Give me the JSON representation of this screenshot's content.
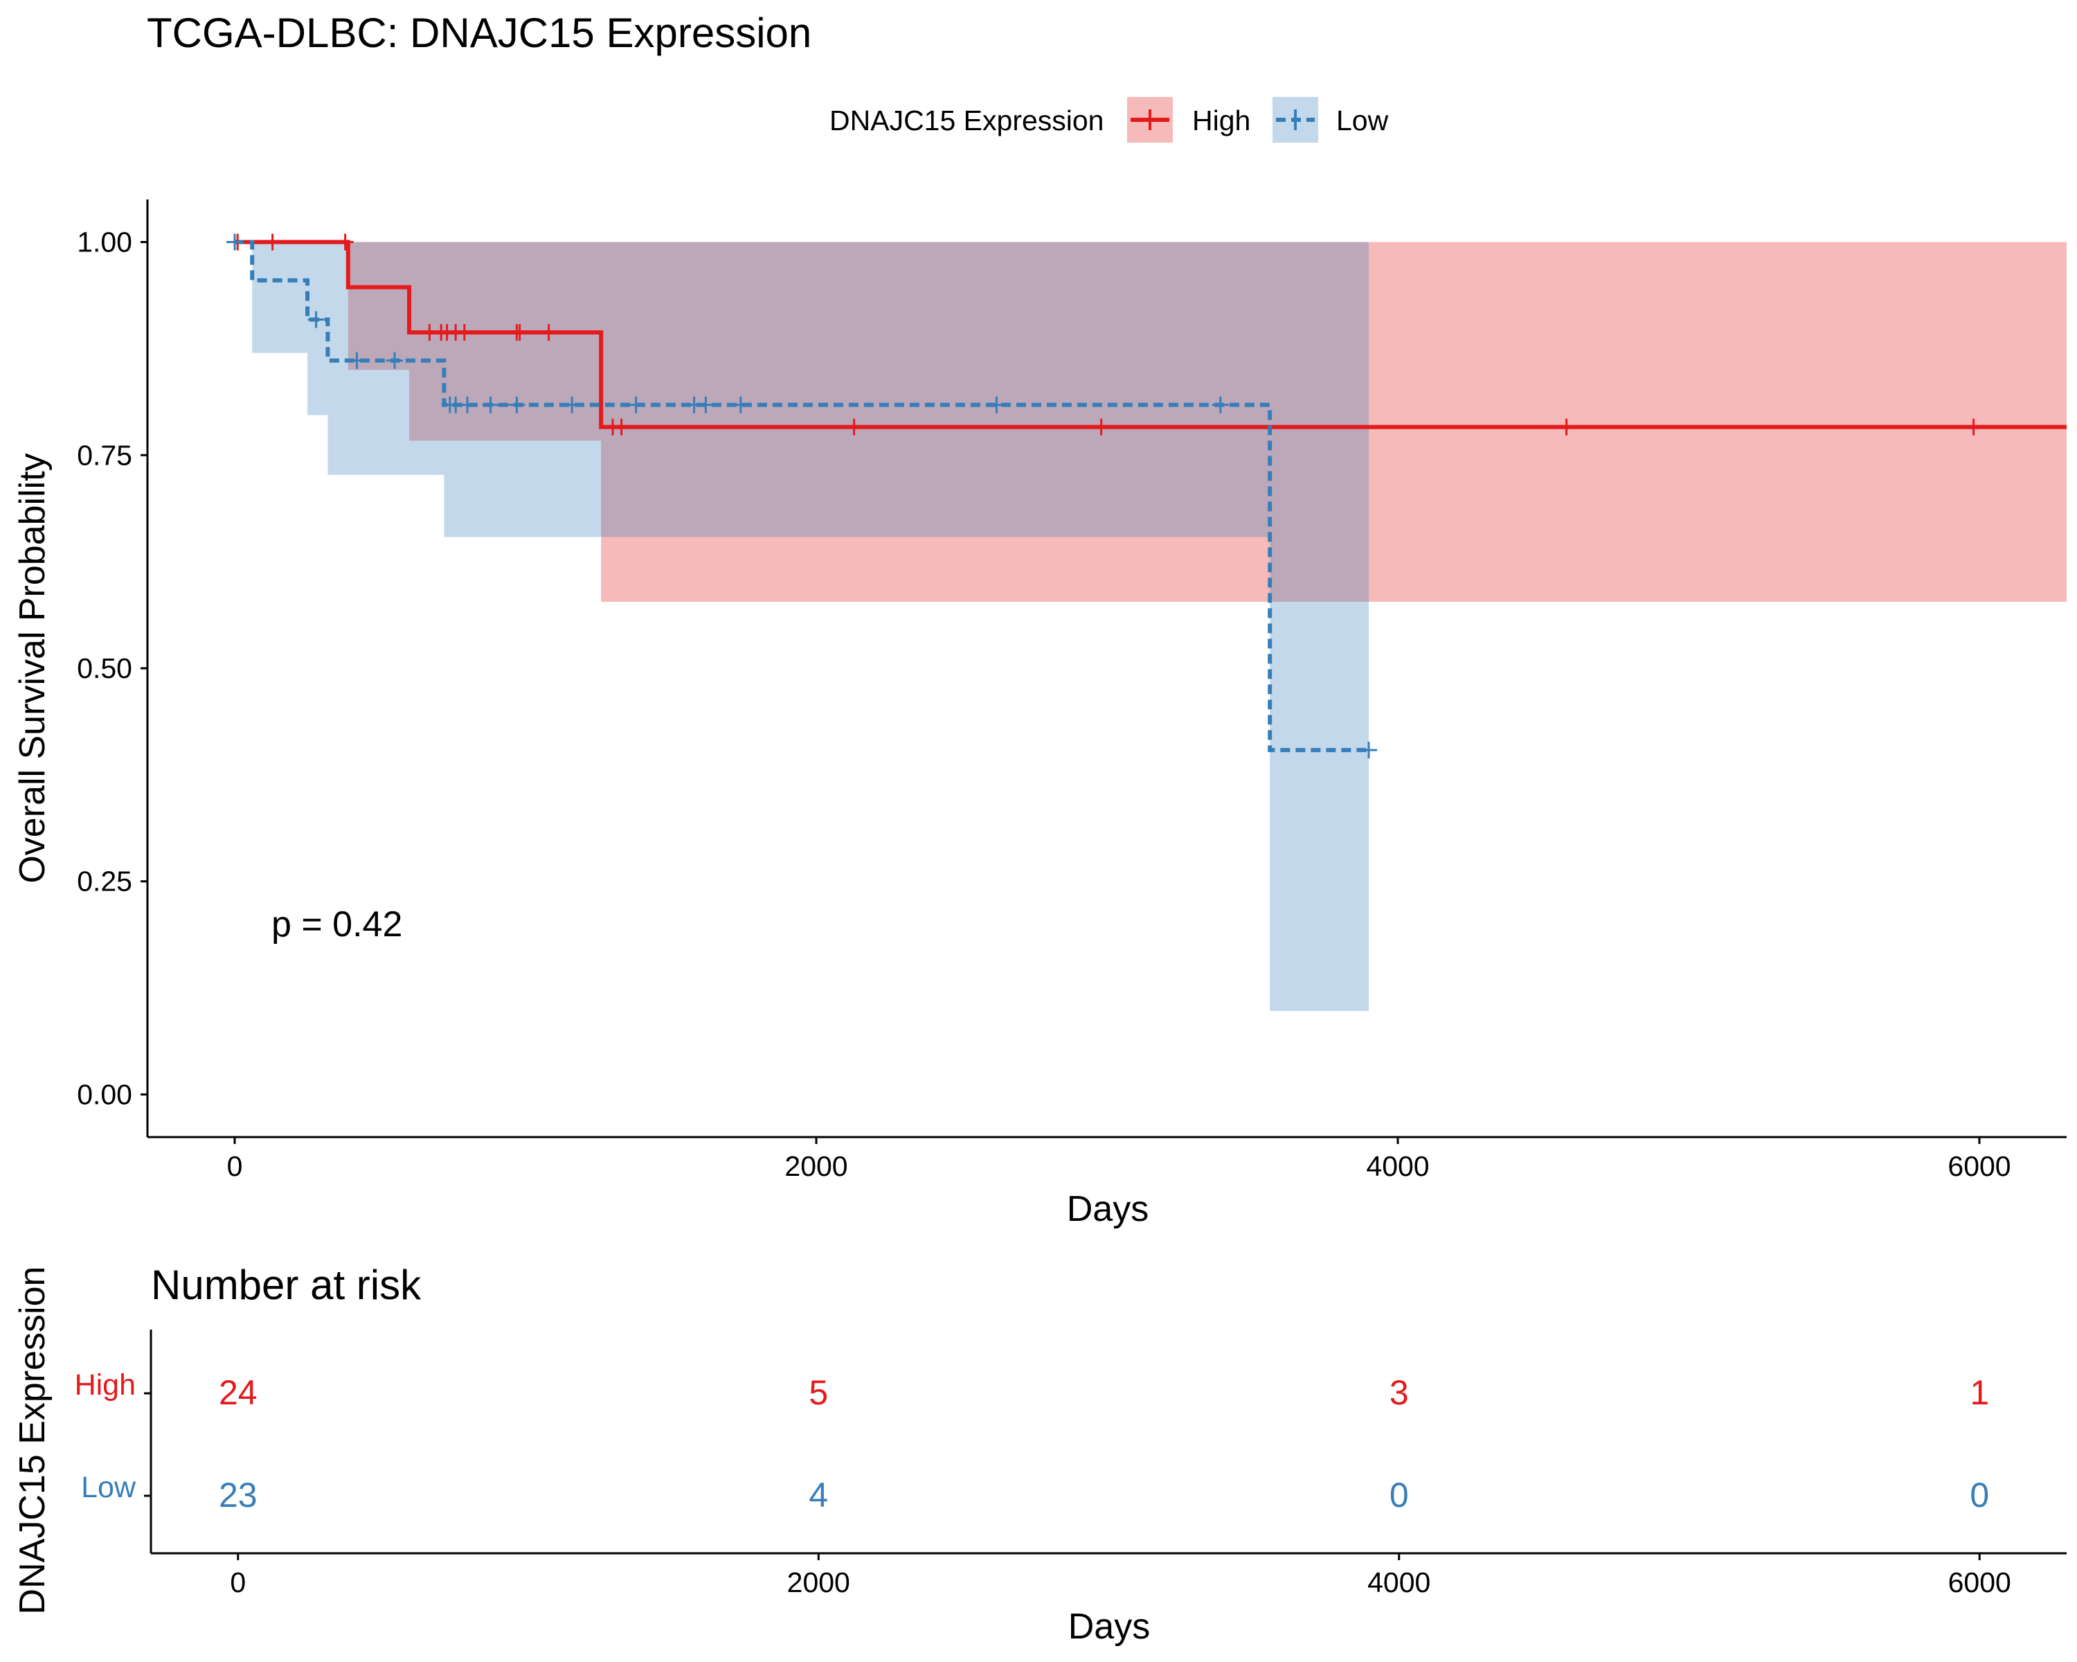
{
  "chart_data": {
    "type": "line",
    "subtype": "kaplan-meier",
    "title": "TCGA-DLBC: DNAJC15 Expression",
    "legend": {
      "title": "DNAJC15 Expression",
      "position": "top",
      "labels": [
        "High",
        "Low"
      ]
    },
    "xlabel": "Days",
    "ylabel": "Overall Survival Probability",
    "xlim": [
      -300,
      6300
    ],
    "ylim": [
      -0.05,
      1.05
    ],
    "x_ticks": [
      "0",
      "2000",
      "4000",
      "6000"
    ],
    "y_ticks": [
      "0.00",
      "0.25",
      "0.50",
      "0.75",
      "1.00"
    ],
    "grid": false,
    "p_value_text": "p = 0.42",
    "colors": {
      "High": "#E41A1C",
      "Low": "#377EB8"
    },
    "series": [
      {
        "name": "High",
        "color": "#E41A1C",
        "line_style": "solid",
        "steps": [
          {
            "x": 0,
            "y": 1.0
          },
          {
            "x": 390,
            "y": 0.947
          },
          {
            "x": 600,
            "y": 0.894
          },
          {
            "x": 1260,
            "y": 0.783
          },
          {
            "x": 6300,
            "y": 0.783
          }
        ],
        "ci_steps": [
          {
            "x": 0,
            "lower": 1.0,
            "upper": 1.0
          },
          {
            "x": 390,
            "lower": 0.85,
            "upper": 1.0
          },
          {
            "x": 600,
            "lower": 0.767,
            "upper": 1.0
          },
          {
            "x": 1260,
            "lower": 0.578,
            "upper": 1.0
          },
          {
            "x": 6300,
            "lower": 0.578,
            "upper": 1.0
          }
        ],
        "censor_times": [
          10,
          130,
          380,
          670,
          710,
          730,
          760,
          790,
          970,
          980,
          1080,
          1300,
          1330,
          2130,
          2980,
          4580,
          5980
        ]
      },
      {
        "name": "Low",
        "color": "#377EB8",
        "line_style": "dashed",
        "steps": [
          {
            "x": 0,
            "y": 1.0
          },
          {
            "x": 60,
            "y": 0.955
          },
          {
            "x": 250,
            "y": 0.909
          },
          {
            "x": 320,
            "y": 0.861
          },
          {
            "x": 720,
            "y": 0.809
          },
          {
            "x": 3560,
            "y": 0.404
          },
          {
            "x": 3900,
            "y": 0.404
          }
        ],
        "ci_steps": [
          {
            "x": 0,
            "lower": 1.0,
            "upper": 1.0
          },
          {
            "x": 60,
            "lower": 0.87,
            "upper": 1.0
          },
          {
            "x": 250,
            "lower": 0.797,
            "upper": 1.0
          },
          {
            "x": 320,
            "lower": 0.727,
            "upper": 1.0
          },
          {
            "x": 720,
            "lower": 0.654,
            "upper": 1.0
          },
          {
            "x": 3560,
            "lower": 0.098,
            "upper": 1.0
          },
          {
            "x": 3900,
            "lower": 0.098,
            "upper": 1.0
          }
        ],
        "censor_times": [
          0,
          280,
          420,
          550,
          740,
          760,
          800,
          880,
          970,
          1160,
          1380,
          1580,
          1620,
          1740,
          2620,
          3390,
          3900
        ]
      }
    ],
    "risk_table": {
      "title": "Number at risk",
      "ylabel": "DNAJC15 Expression",
      "xlabel": "Days",
      "times": [
        0,
        2000,
        4000,
        6000
      ],
      "rows": [
        {
          "name": "High",
          "color": "#E41A1C",
          "counts": [
            "24",
            "5",
            "3",
            "1"
          ]
        },
        {
          "name": "Low",
          "color": "#377EB8",
          "counts": [
            "23",
            "4",
            "0",
            "0"
          ]
        }
      ]
    }
  }
}
